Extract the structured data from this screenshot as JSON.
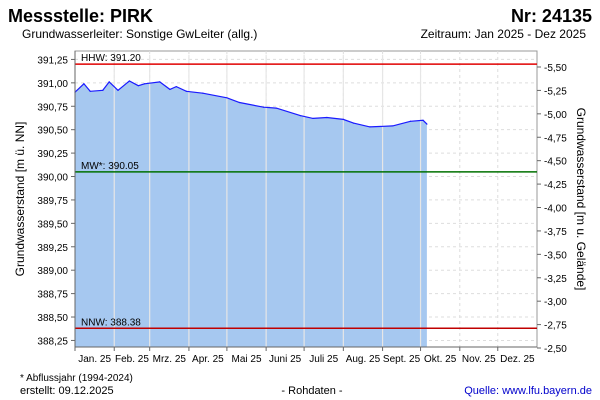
{
  "header": {
    "title": "Messstelle: PIRK",
    "number": "Nr: 24135",
    "aquifer": "Grundwasserleiter: Sonstige GwLeiter (allg.)",
    "period": "Zeitraum: Jan 2025 - Dez 2025"
  },
  "footer": {
    "note": "* Abflussjahr (1994-2024)",
    "created": "erstellt:  09.12.2025",
    "raw": "- Rohdaten -",
    "source": "Quelle: www.lfu.bayern.de"
  },
  "colors": {
    "fill": "#a6c8f0",
    "line": "#1a1aff",
    "hhw": "#e00000",
    "mw": "#007000",
    "nnw": "#c00000",
    "source": "#0000cc"
  },
  "chart_data": {
    "type": "area",
    "ylabel": "Grundwasserstand [m ü. NN]",
    "ylabel_right": "Grundwasserstand [m u. Gelände]",
    "x_unit": "day of year 2025",
    "xlim": [
      0,
      365
    ],
    "ylim": [
      388.18,
      391.34
    ],
    "categories": [
      "Jan. 25",
      "Feb. 25",
      "Mrz. 25",
      "Apr. 25",
      "Mai 25",
      "Juni 25",
      "Juli 25",
      "Aug. 25",
      "Sept. 25",
      "Okt. 25",
      "Nov. 25",
      "Dez. 25"
    ],
    "month_starts": [
      0,
      31,
      59,
      90,
      120,
      151,
      181,
      212,
      243,
      273,
      304,
      334
    ],
    "yticks": [
      "391,25",
      "391,00",
      "390,75",
      "390,50",
      "390,25",
      "390,00",
      "389,75",
      "389,50",
      "389,25",
      "389,00",
      "388,75",
      "388,50",
      "388,25"
    ],
    "ytick_values": [
      391.25,
      391.0,
      390.75,
      390.5,
      390.25,
      390.0,
      389.75,
      389.5,
      389.25,
      389.0,
      388.75,
      388.5,
      388.25
    ],
    "yticks_right": [
      "-5,50",
      "-5,25",
      "-5,00",
      "-4,75",
      "-4,50",
      "-4,25",
      "-4,00",
      "-3,75",
      "-3,50",
      "-3,25",
      "-3,00",
      "-2,75",
      "-2,50"
    ],
    "ytick_right_values": [
      -5.5,
      -5.25,
      -5.0,
      -4.75,
      -4.5,
      -4.25,
      -4.0,
      -3.75,
      -3.5,
      -3.25,
      -3.0,
      -2.75,
      -2.5
    ],
    "reference_lines": [
      {
        "label": "HHW: 391.20",
        "value": 391.2,
        "color": "#e00000"
      },
      {
        "label": "MW*: 390.05",
        "value": 390.05,
        "color": "#007000"
      },
      {
        "label": "NNW: 388.38",
        "value": 388.38,
        "color": "#c00000"
      }
    ],
    "series": [
      {
        "name": "Grundwasserstand",
        "x": [
          0,
          7,
          12,
          22,
          27,
          34,
          43,
          50,
          55,
          67,
          75,
          80,
          88,
          101,
          120,
          130,
          149,
          159,
          178,
          188,
          199,
          212,
          220,
          233,
          251,
          265,
          275,
          278
        ],
        "y": [
          390.9,
          390.99,
          390.91,
          390.92,
          391.01,
          390.92,
          391.02,
          390.97,
          390.99,
          391.01,
          390.93,
          390.96,
          390.91,
          390.89,
          390.84,
          390.79,
          390.74,
          390.73,
          390.65,
          390.62,
          390.63,
          390.61,
          390.57,
          390.53,
          390.54,
          390.59,
          390.6,
          390.56
        ]
      }
    ]
  }
}
